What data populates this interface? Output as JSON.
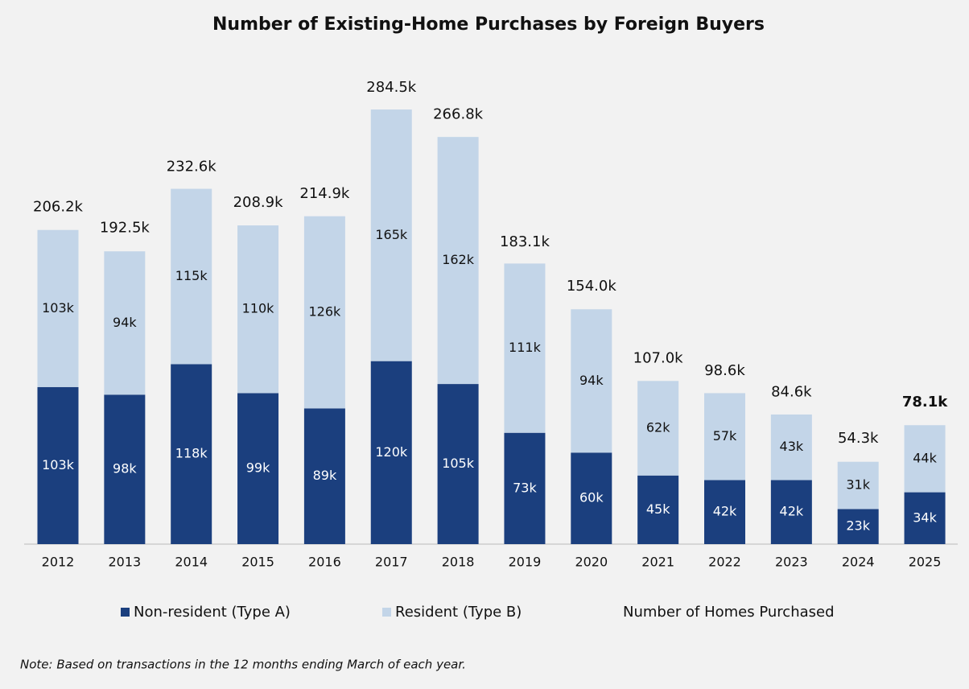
{
  "chart_data": {
    "type": "stacked-bar",
    "title": "Number of Existing-Home Purchases by Foreign Buyers",
    "categories": [
      "2012",
      "2013",
      "2014",
      "2015",
      "2016",
      "2017",
      "2018",
      "2019",
      "2020",
      "2021",
      "2022",
      "2023",
      "2024",
      "2025"
    ],
    "series": [
      {
        "name": "Non-resident (Type A)",
        "color": "#1b3f7e",
        "values": [
          103,
          98,
          118,
          99,
          89,
          120,
          105,
          73,
          60,
          45,
          42,
          42,
          23,
          34
        ],
        "value_labels": [
          "103k",
          "98k",
          "118k",
          "99k",
          "89k",
          "120k",
          "105k",
          "73k",
          "60k",
          "45k",
          "42k",
          "42k",
          "23k",
          "34k"
        ]
      },
      {
        "name": "Resident (Type B)",
        "color": "#c3d5e8",
        "values": [
          103,
          94,
          115,
          110,
          126,
          165,
          162,
          111,
          94,
          62,
          57,
          43,
          31,
          44
        ],
        "value_labels": [
          "103k",
          "94k",
          "115k",
          "110k",
          "126k",
          "165k",
          "162k",
          "111k",
          "94k",
          "62k",
          "57k",
          "43k",
          "31k",
          "44k"
        ]
      }
    ],
    "totals": {
      "name": "Number of Homes Purchased",
      "values": [
        206.2,
        192.5,
        232.6,
        208.9,
        214.9,
        284.5,
        266.8,
        183.1,
        154.0,
        107.0,
        98.6,
        84.6,
        54.3,
        78.1
      ],
      "value_labels": [
        "206.2k",
        "192.5k",
        "232.6k",
        "208.9k",
        "214.9k",
        "284.5k",
        "266.8k",
        "183.1k",
        "154.0k",
        "107.0k",
        "98.6k",
        "84.6k",
        "54.3k",
        "78.1k"
      ]
    },
    "note": "Note: Based on transactions in the 12 months ending March of each year."
  }
}
